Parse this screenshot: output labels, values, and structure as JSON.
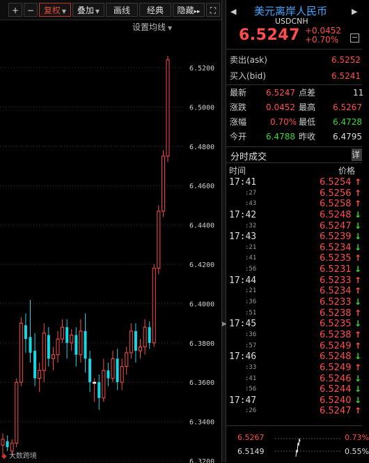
{
  "toolbar": {
    "zoom_in": "+",
    "zoom_out": "−",
    "adjust": "复权",
    "overlay": "叠加",
    "line": "画线",
    "classic": "经典",
    "hide": "隐藏",
    "more": "▸▸",
    "fullscreen": "⛶",
    "ma_setting": "设置均线",
    "accent_color": "#e74c3c"
  },
  "quote": {
    "title": "美元离岸人民币",
    "code": "USDCNH",
    "price": "6.5247",
    "change": "+0.0452",
    "change_pct": "+0.70%",
    "collapse": "−",
    "ask_label": "卖出(ask)",
    "ask_value": "6.5252",
    "bid_label": "买入(bid)",
    "bid_value": "6.5241",
    "stats": [
      {
        "label": "最新",
        "value": "6.5247",
        "color": "red",
        "label2": "点差",
        "value2": "11",
        "color2": "wht"
      },
      {
        "label": "涨跌",
        "value": "0.0452",
        "color": "red",
        "label2": "最高",
        "value2": "6.5267",
        "color2": "red"
      },
      {
        "label": "涨幅",
        "value": "0.70%",
        "color": "red",
        "label2": "最低",
        "value2": "6.4728",
        "color2": "grn"
      },
      {
        "label": "今开",
        "value": "6.4788",
        "color": "grn",
        "label2": "昨收",
        "value2": "6.4795",
        "color2": "wht"
      }
    ],
    "up_color": "#ff4d4d",
    "down_color": "#37d837"
  },
  "ticks": {
    "title": "分时成交",
    "detail": "详",
    "col_time": "时间",
    "col_price": "价格",
    "rows": [
      {
        "time": "17:41",
        "big": true,
        "price": "6.5254",
        "dir": "up"
      },
      {
        "time": ":27",
        "big": false,
        "price": "6.5256",
        "dir": "up"
      },
      {
        "time": ":43",
        "big": false,
        "price": "6.5258",
        "dir": "up"
      },
      {
        "time": "17:42",
        "big": true,
        "price": "6.5248",
        "dir": "dn"
      },
      {
        "time": ":32",
        "big": false,
        "price": "6.5247",
        "dir": "dn"
      },
      {
        "time": "17:43",
        "big": true,
        "price": "6.5239",
        "dir": "dn"
      },
      {
        "time": ":21",
        "big": false,
        "price": "6.5234",
        "dir": "dn"
      },
      {
        "time": ":41",
        "big": false,
        "price": "6.5235",
        "dir": "up"
      },
      {
        "time": ":56",
        "big": false,
        "price": "6.5231",
        "dir": "dn"
      },
      {
        "time": "17:44",
        "big": true,
        "price": "6.5233",
        "dir": "up"
      },
      {
        "time": ":21",
        "big": false,
        "price": "6.5234",
        "dir": "up"
      },
      {
        "time": ":36",
        "big": false,
        "price": "6.5233",
        "dir": "dn"
      },
      {
        "time": ":51",
        "big": false,
        "price": "6.5238",
        "dir": "up"
      },
      {
        "time": "17:45",
        "big": true,
        "price": "6.5235",
        "dir": "dn"
      },
      {
        "time": ":36",
        "big": false,
        "price": "6.5238",
        "dir": "up"
      },
      {
        "time": ":57",
        "big": false,
        "price": "6.5249",
        "dir": "up"
      },
      {
        "time": "17:46",
        "big": true,
        "price": "6.5248",
        "dir": "dn"
      },
      {
        "time": ":33",
        "big": false,
        "price": "6.5249",
        "dir": "up"
      },
      {
        "time": ":41",
        "big": false,
        "price": "6.5246",
        "dir": "dn"
      },
      {
        "time": ":56",
        "big": false,
        "price": "6.5244",
        "dir": "dn"
      },
      {
        "time": "17:47",
        "big": true,
        "price": "6.5240",
        "dir": "dn"
      },
      {
        "time": ":26",
        "big": false,
        "price": "6.5247",
        "dir": "up"
      }
    ]
  },
  "mini": {
    "max": "6.5267",
    "min": "6.5149",
    "pct_max": "0.73%",
    "pct_min": "0.55%"
  },
  "watermark": "大数跨境",
  "chart_data": {
    "type": "candlestick",
    "title": "",
    "xlabel": "",
    "ylabel": "",
    "ylim": [
      6.32,
      6.53
    ],
    "y_ticks": [
      "6.5200",
      "6.5000",
      "6.4800",
      "6.4600",
      "6.4400",
      "6.4200",
      "6.4000",
      "6.3800",
      "6.3600",
      "6.3400",
      "6.3200"
    ],
    "grid": true,
    "up_color": "#ff4d4d",
    "down_color": "#16d7e3",
    "candles": [
      {
        "o": 6.328,
        "c": 6.331,
        "h": 6.334,
        "l": 6.323
      },
      {
        "o": 6.33,
        "c": 6.327,
        "h": 6.333,
        "l": 6.325
      },
      {
        "o": 6.325,
        "c": 6.329,
        "h": 6.331,
        "l": 6.322
      },
      {
        "o": 6.329,
        "c": 6.36,
        "h": 6.362,
        "l": 6.327
      },
      {
        "o": 6.36,
        "c": 6.39,
        "h": 6.393,
        "l": 6.358
      },
      {
        "o": 6.389,
        "c": 6.382,
        "h": 6.395,
        "l": 6.375
      },
      {
        "o": 6.383,
        "c": 6.375,
        "h": 6.402,
        "l": 6.37
      },
      {
        "o": 6.376,
        "c": 6.362,
        "h": 6.385,
        "l": 6.358
      },
      {
        "o": 6.362,
        "c": 6.366,
        "h": 6.37,
        "l": 6.355
      },
      {
        "o": 6.366,
        "c": 6.385,
        "h": 6.39,
        "l": 6.36
      },
      {
        "o": 6.384,
        "c": 6.372,
        "h": 6.388,
        "l": 6.368
      },
      {
        "o": 6.372,
        "c": 6.374,
        "h": 6.378,
        "l": 6.366
      },
      {
        "o": 6.374,
        "c": 6.382,
        "h": 6.386,
        "l": 6.37
      },
      {
        "o": 6.382,
        "c": 6.388,
        "h": 6.392,
        "l": 6.38
      },
      {
        "o": 6.388,
        "c": 6.38,
        "h": 6.392,
        "l": 6.372
      },
      {
        "o": 6.38,
        "c": 6.384,
        "h": 6.387,
        "l": 6.376
      },
      {
        "o": 6.384,
        "c": 6.374,
        "h": 6.388,
        "l": 6.368
      },
      {
        "o": 6.374,
        "c": 6.386,
        "h": 6.392,
        "l": 6.37
      },
      {
        "o": 6.386,
        "c": 6.372,
        "h": 6.395,
        "l": 6.365
      },
      {
        "o": 6.372,
        "c": 6.36,
        "h": 6.376,
        "l": 6.355
      },
      {
        "o": 6.36,
        "c": 6.36,
        "h": 6.362,
        "l": 6.35
      },
      {
        "o": 6.36,
        "c": 6.352,
        "h": 6.364,
        "l": 6.346
      },
      {
        "o": 6.352,
        "c": 6.366,
        "h": 6.372,
        "l": 6.35
      },
      {
        "o": 6.366,
        "c": 6.362,
        "h": 6.37,
        "l": 6.358
      },
      {
        "o": 6.362,
        "c": 6.372,
        "h": 6.376,
        "l": 6.36
      },
      {
        "o": 6.372,
        "c": 6.36,
        "h": 6.377,
        "l": 6.356
      },
      {
        "o": 6.36,
        "c": 6.368,
        "h": 6.372,
        "l": 6.356
      },
      {
        "o": 6.368,
        "c": 6.375,
        "h": 6.378,
        "l": 6.364
      },
      {
        "o": 6.375,
        "c": 6.386,
        "h": 6.39,
        "l": 6.372
      },
      {
        "o": 6.386,
        "c": 6.376,
        "h": 6.39,
        "l": 6.37
      },
      {
        "o": 6.376,
        "c": 6.378,
        "h": 6.382,
        "l": 6.372
      },
      {
        "o": 6.378,
        "c": 6.388,
        "h": 6.392,
        "l": 6.374
      },
      {
        "o": 6.388,
        "c": 6.38,
        "h": 6.391,
        "l": 6.377
      },
      {
        "o": 6.38,
        "c": 6.418,
        "h": 6.42,
        "l": 6.378
      },
      {
        "o": 6.418,
        "c": 6.447,
        "h": 6.45,
        "l": 6.415
      },
      {
        "o": 6.447,
        "c": 6.475,
        "h": 6.478,
        "l": 6.444
      },
      {
        "o": 6.475,
        "c": 6.524,
        "h": 6.526,
        "l": 6.472
      }
    ]
  }
}
